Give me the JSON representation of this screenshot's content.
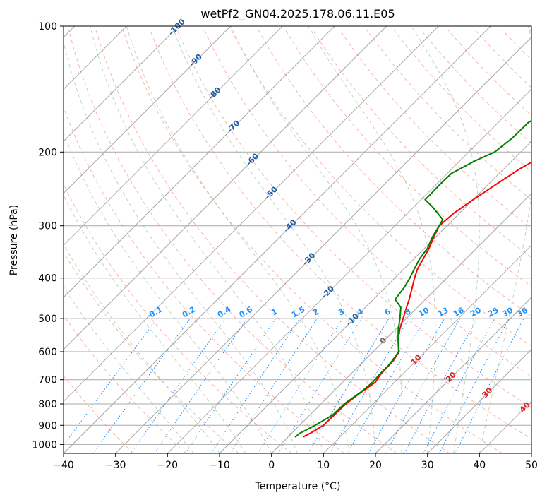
{
  "chart_data": {
    "type": "line",
    "title": "wetPf2_GN04.2025.178.06.11.E05",
    "xlabel": "Temperature (°C)",
    "ylabel": "Pressure (hPa)",
    "xlim": [
      -40,
      50
    ],
    "ylim": [
      1050,
      100
    ],
    "y_scale": "log",
    "grid": true,
    "x_ticks": [
      -40,
      -30,
      -20,
      -10,
      0,
      10,
      20,
      30,
      40,
      50
    ],
    "x_tick_labels": [
      "−40",
      "−30",
      "−20",
      "−10",
      "0",
      "10",
      "20",
      "30",
      "40",
      "50"
    ],
    "y_ticks": [
      100,
      200,
      300,
      400,
      500,
      600,
      700,
      800,
      900,
      1000
    ],
    "y_tick_labels": [
      "100",
      "200",
      "300",
      "400",
      "500",
      "600",
      "700",
      "800",
      "900",
      "1000"
    ],
    "series": [
      {
        "color": "#ff0000",
        "points": [
          [
            2.9,
            960
          ],
          [
            3.6,
            940
          ],
          [
            4.1,
            920
          ],
          [
            4.6,
            900
          ],
          [
            4.7,
            850
          ],
          [
            4.8,
            800
          ],
          [
            5.5,
            750
          ],
          [
            6.3,
            710
          ],
          [
            5.8,
            680
          ],
          [
            5.7,
            650
          ],
          [
            5.6,
            630
          ],
          [
            5.0,
            600
          ],
          [
            3.7,
            580
          ],
          [
            2.4,
            560
          ],
          [
            0.8,
            530
          ],
          [
            -0.6,
            500
          ],
          [
            -2.1,
            470
          ],
          [
            -3.1,
            450
          ],
          [
            -4.9,
            420
          ],
          [
            -6.2,
            400
          ],
          [
            -7.4,
            380
          ],
          [
            -8.2,
            360
          ],
          [
            -9.1,
            340
          ],
          [
            -10.3,
            320
          ],
          [
            -11.5,
            300
          ],
          [
            -11.1,
            280
          ],
          [
            -10.0,
            260
          ],
          [
            -8.6,
            240
          ],
          [
            -7.0,
            220
          ],
          [
            -4.5,
            200
          ],
          [
            -1.5,
            180
          ],
          [
            0.8,
            165
          ],
          [
            3.1,
            150
          ],
          [
            5.9,
            135
          ],
          [
            9.1,
            120
          ],
          [
            11.6,
            110
          ],
          [
            14.9,
            100
          ]
        ]
      },
      {
        "color": "#008000",
        "points": [
          [
            1.4,
            960
          ],
          [
            1.6,
            940
          ],
          [
            2.3,
            920
          ],
          [
            3.0,
            900
          ],
          [
            4.4,
            850
          ],
          [
            4.5,
            800
          ],
          [
            5.4,
            750
          ],
          [
            5.8,
            710
          ],
          [
            5.6,
            680
          ],
          [
            5.6,
            650
          ],
          [
            5.4,
            630
          ],
          [
            4.9,
            600
          ],
          [
            3.7,
            580
          ],
          [
            2.4,
            560
          ],
          [
            0.5,
            530
          ],
          [
            -1.2,
            500
          ],
          [
            -3.2,
            470
          ],
          [
            -5.8,
            450
          ],
          [
            -6.4,
            420
          ],
          [
            -7.1,
            400
          ],
          [
            -8.0,
            380
          ],
          [
            -8.9,
            360
          ],
          [
            -9.4,
            340
          ],
          [
            -10.6,
            320
          ],
          [
            -11.5,
            300
          ],
          [
            -12.0,
            290
          ],
          [
            -16.5,
            270
          ],
          [
            -19.2,
            260
          ],
          [
            -19.3,
            240
          ],
          [
            -19.2,
            225
          ],
          [
            -17.1,
            210
          ],
          [
            -15.0,
            200
          ],
          [
            -14.3,
            185
          ],
          [
            -14.2,
            170
          ],
          [
            -11.8,
            155
          ],
          [
            -9.4,
            140
          ],
          [
            -6.0,
            125
          ],
          [
            -2.4,
            110
          ],
          [
            1.0,
            100
          ]
        ]
      }
    ],
    "isotherm_labels": [
      "-100",
      "-90",
      "-80",
      "-70",
      "-60",
      "-50",
      "-40",
      "-30",
      "-20",
      "-10",
      "0",
      "10",
      "20",
      "30",
      "40"
    ],
    "mixing_ratio_labels": [
      "0.1",
      "0.2",
      "0.4",
      "0.6",
      "1",
      "1.5",
      "2",
      "3",
      "4",
      "6",
      "8",
      "10",
      "13",
      "16",
      "20",
      "25",
      "30",
      "36"
    ]
  },
  "colors": {
    "temperature": "#ff0000",
    "dewpoint": "#008000",
    "dry_adiabat": "#fa8072",
    "moist_adiabat": "#8fbc8f",
    "mixing_ratio": "#1e90ff",
    "isotherm": "#808080",
    "isobar": "#a9a9a9",
    "isotherm_label_cold": "#1f5fa8",
    "isotherm_label_warm": "#d62728",
    "isotherm_label_zero": "#666666"
  }
}
